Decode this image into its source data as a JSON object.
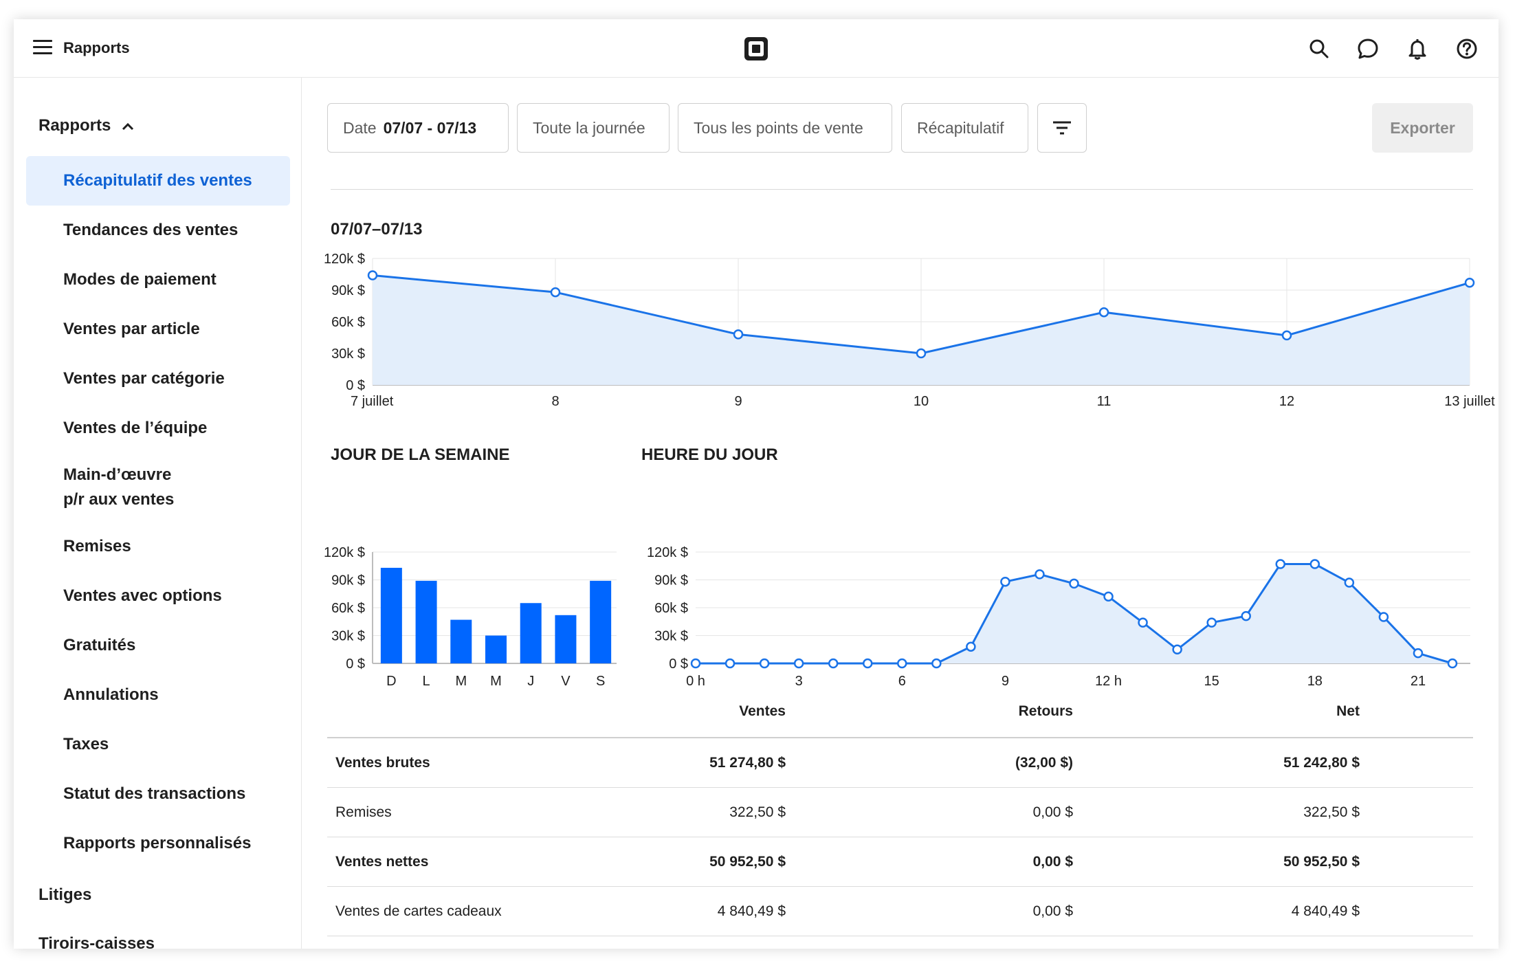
{
  "header": {
    "title": "Rapports",
    "icons": [
      "menu-icon",
      "square-logo",
      "search-icon",
      "chat-icon",
      "bell-icon",
      "help-icon"
    ]
  },
  "sidebar": {
    "section_title": "Rapports",
    "items": [
      {
        "label": "Récapitulatif des ventes",
        "active": true
      },
      {
        "label": "Tendances des ventes"
      },
      {
        "label": "Modes de paiement"
      },
      {
        "label": "Ventes par article"
      },
      {
        "label": "Ventes par catégorie"
      },
      {
        "label": "Ventes de l’équipe"
      },
      {
        "label": "Main-d’œuvre p/r aux ventes"
      },
      {
        "label": "Remises"
      },
      {
        "label": "Ventes avec options"
      },
      {
        "label": "Gratuités"
      },
      {
        "label": "Annulations"
      },
      {
        "label": "Taxes"
      },
      {
        "label": "Statut des transactions"
      },
      {
        "label": "Rapports personnalisés"
      }
    ],
    "litiges": "Litiges",
    "tiroirs": "Tiroirs-caisses"
  },
  "filters": {
    "date_label": "Date",
    "date_value": "07/07 - 07/13",
    "time": "Toute la journée",
    "locations": "Tous les points de vente",
    "summary": "Récapitulatif",
    "export": "Exporter"
  },
  "overview": {
    "range_title": "07/07–07/13"
  },
  "sections": {
    "weekday_title": "JOUR DE LA SEMAINE",
    "hour_title": "HEURE DU JOUR"
  },
  "colors": {
    "accent": "#0f62d4",
    "line": "#1a73e8",
    "bar": "#0066ff",
    "area": "#e3eefb",
    "active_bg": "#e6f0fe"
  },
  "chart_data": [
    {
      "type": "area",
      "x": [
        "7 juillet",
        "8",
        "9",
        "10",
        "11",
        "12",
        "13 juillet"
      ],
      "values": [
        104000,
        88000,
        48000,
        30000,
        69000,
        47000,
        97000
      ],
      "yticks": [
        "0 $",
        "30k $",
        "60k $",
        "90k $",
        "120k $"
      ],
      "ylim": [
        0,
        120000
      ],
      "grid": true
    },
    {
      "type": "bar",
      "categories": [
        "D",
        "L",
        "M",
        "M",
        "J",
        "V",
        "S"
      ],
      "values": [
        103000,
        89000,
        47000,
        30000,
        65000,
        52000,
        89000
      ],
      "yticks": [
        "0 $",
        "30k $",
        "60k $",
        "90k $",
        "120k $"
      ],
      "ylim": [
        0,
        120000
      ],
      "grid": true
    },
    {
      "type": "area",
      "x": [
        0,
        1,
        2,
        3,
        4,
        5,
        6,
        7,
        8,
        9,
        10,
        11,
        12,
        13,
        14,
        15,
        16,
        17,
        18,
        19,
        20,
        21,
        22
      ],
      "xticks": [
        "0 h",
        "3",
        "6",
        "9",
        "12 h",
        "15",
        "18",
        "21"
      ],
      "xtick_values": [
        0,
        3,
        6,
        9,
        12,
        15,
        18,
        21
      ],
      "values": [
        0,
        0,
        0,
        0,
        0,
        0,
        0,
        0,
        18000,
        88000,
        96000,
        86000,
        72000,
        44000,
        15000,
        44000,
        51000,
        107000,
        107000,
        87000,
        50000,
        11000,
        0
      ],
      "yticks": [
        "0 $",
        "30k $",
        "60k $",
        "90k $",
        "120k $"
      ],
      "ylim": [
        0,
        120000
      ],
      "grid": true
    }
  ],
  "table": {
    "headers": [
      "Ventes",
      "Retours",
      "Net"
    ],
    "rows": [
      {
        "label": "Ventes brutes",
        "ventes": "51 274,80 $",
        "retours": "(32,00 $)",
        "net": "51 242,80 $",
        "bold": true
      },
      {
        "label": "Remises",
        "ventes": "322,50 $",
        "retours": "0,00 $",
        "net": "322,50 $",
        "bold": false
      },
      {
        "label": "Ventes nettes",
        "ventes": "50 952,50 $",
        "retours": "0,00 $",
        "net": "50 952,50 $",
        "bold": true
      },
      {
        "label": "Ventes de cartes cadeaux",
        "ventes": "4 840,49 $",
        "retours": "0,00 $",
        "net": "4 840,49 $",
        "bold": false
      }
    ]
  }
}
